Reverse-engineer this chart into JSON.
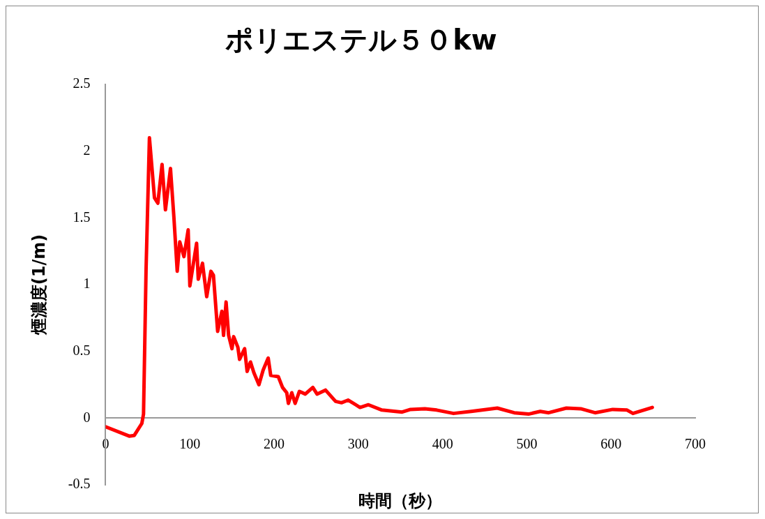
{
  "chart_data": {
    "type": "line",
    "title": "ポリエステル５０kw",
    "xlabel": "時間（秒）",
    "ylabel": "煙濃度(1/m)",
    "xlim": [
      0,
      700
    ],
    "xticks": [
      0,
      100,
      200,
      300,
      400,
      500,
      600,
      700
    ],
    "ylim": [
      -0.5,
      2.5
    ],
    "yticks": [
      -0.5,
      0,
      0.5,
      1,
      1.5,
      2,
      2.5
    ],
    "grid": false,
    "legend": false,
    "marker": "none",
    "line_style": "solid",
    "series": [
      {
        "color": "#ff0000",
        "x": [
          0,
          28,
          34,
          43,
          45,
          48,
          52,
          58,
          62,
          67,
          71,
          77,
          81,
          85,
          88,
          93,
          98,
          100,
          108,
          110,
          115,
          120,
          125,
          128,
          133,
          138,
          140,
          143,
          146,
          150,
          152,
          157,
          159,
          165,
          168,
          172,
          176,
          182,
          187,
          193,
          196,
          205,
          210,
          215,
          217,
          221,
          225,
          230,
          237,
          246,
          251,
          261,
          273,
          280,
          288,
          302,
          312,
          328,
          352,
          362,
          379,
          393,
          413,
          434,
          465,
          485,
          502,
          516,
          526,
          547,
          564,
          581,
          602,
          619,
          626,
          649
        ],
        "values": [
          -0.065,
          -0.135,
          -0.13,
          -0.04,
          0.03,
          1.11,
          2.1,
          1.65,
          1.61,
          1.9,
          1.56,
          1.87,
          1.51,
          1.1,
          1.32,
          1.21,
          1.41,
          0.99,
          1.31,
          1.04,
          1.16,
          0.91,
          1.1,
          1.07,
          0.65,
          0.8,
          0.62,
          0.87,
          0.62,
          0.52,
          0.61,
          0.53,
          0.44,
          0.52,
          0.35,
          0.42,
          0.34,
          0.25,
          0.36,
          0.45,
          0.32,
          0.31,
          0.23,
          0.19,
          0.11,
          0.19,
          0.11,
          0.2,
          0.18,
          0.23,
          0.18,
          0.21,
          0.125,
          0.115,
          0.135,
          0.08,
          0.1,
          0.06,
          0.045,
          0.065,
          0.07,
          0.06,
          0.035,
          0.05,
          0.075,
          0.04,
          0.03,
          0.05,
          0.04,
          0.075,
          0.07,
          0.04,
          0.065,
          0.06,
          0.035,
          0.08
        ]
      }
    ]
  }
}
